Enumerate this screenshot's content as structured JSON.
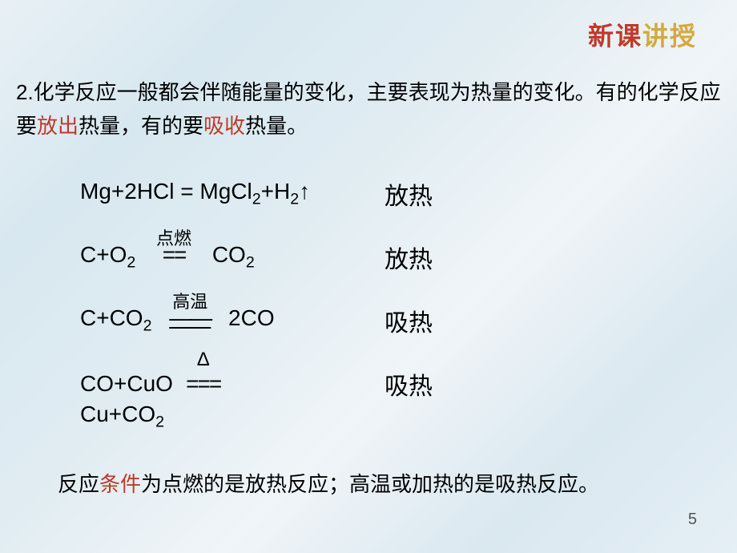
{
  "header": {
    "char1": "新课",
    "char1_color": "#c0392b",
    "char2": "讲授",
    "char2_color": "#d4a940"
  },
  "main_text": {
    "part1": "2.化学反应一般都会伴随能量的变化，主要表现为热量的变化。有的化学反应要",
    "highlight1": "放出",
    "part2": "热量，有的要",
    "highlight2": "吸收",
    "part3": "热量。",
    "highlight_color": "#c0392b",
    "text_color": "#000000",
    "font_size": 26
  },
  "equations": [
    {
      "left_pre": "Mg+2HCl = MgCl",
      "left_sub1": "2",
      "left_mid": "+H",
      "left_sub2": "2",
      "left_post": "↑",
      "condition": null,
      "right": "放热"
    },
    {
      "left_pre": "C+O",
      "left_sub1": "2",
      "left_mid": " ",
      "condition": "点燃",
      "condition_line": "==",
      "left_post_pre": "   CO",
      "left_post_sub": "2",
      "right": "放热"
    },
    {
      "left_pre": "C+CO",
      "left_sub1": "2",
      "left_mid": " ",
      "condition": "高温",
      "condition_line": "——",
      "left_post": "  2CO",
      "right": "吸热"
    },
    {
      "left_pre": "CO+CuO   ",
      "condition": "Δ",
      "condition_line": "===",
      "left_post": "",
      "continuation_pre": "Cu+CO",
      "continuation_sub": "2",
      "right": "吸热"
    }
  ],
  "conclusion": {
    "indent": "　　",
    "part1": "反应",
    "highlight1": "条件",
    "part2": "为点燃的是放热反应；高温或加热的是吸热反应。",
    "highlight_color": "#c0392b",
    "text_color": "#000000"
  },
  "page_number": "5",
  "colors": {
    "background_gradient": [
      "#e8f0f5",
      "#d8e8f0",
      "#e0ecf2",
      "#f0f5f8",
      "#dae8f0",
      "#e5eff5"
    ]
  }
}
